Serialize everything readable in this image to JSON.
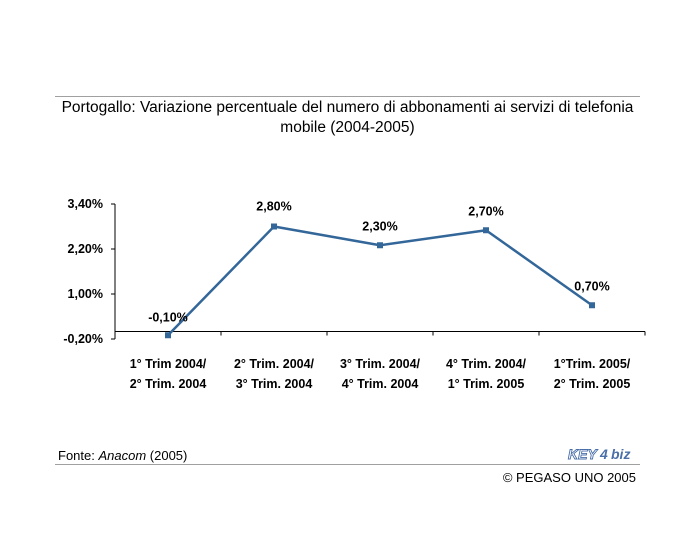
{
  "title": "Portogallo: Variazione percentuale del numero di abbonamenti ai servizi di telefonia mobile (2004-2005)",
  "source": {
    "prefix": "Fonte: ",
    "name": "Anacom",
    "suffix": " (2005)"
  },
  "copyright": "© PEGASO UNO 2005",
  "logo": {
    "text_left": "KEY",
    "text_num": "4",
    "text_right": "biz",
    "color": "#4a6fa8"
  },
  "chart_data": {
    "type": "line",
    "title": "Portogallo: Variazione percentuale del numero di abbonamenti ai servizi di telefonia mobile (2004-2005)",
    "categories": [
      [
        "1° Trim 2004/",
        "2° Trim. 2004"
      ],
      [
        "2° Trim. 2004/",
        "3° Trim. 2004"
      ],
      [
        "3° Trim. 2004/",
        "4° Trim. 2004"
      ],
      [
        "4° Trim. 2004/",
        "1° Trim. 2005"
      ],
      [
        "1°Trim. 2005/",
        "2° Trim. 2005"
      ]
    ],
    "series": [
      {
        "values": [
          -0.1,
          2.8,
          2.3,
          2.7,
          0.7
        ],
        "color": "#336699"
      }
    ],
    "data_labels": [
      "-0,10%",
      "2,80%",
      "2,30%",
      "2,70%",
      "0,70%"
    ],
    "yticks": [
      -0.2,
      1.0,
      2.2,
      3.4
    ],
    "ytick_labels": [
      "-0,20%",
      "1,00%",
      "2,20%",
      "3,40%"
    ],
    "ylim": [
      -0.2,
      3.4
    ],
    "xlabel": "",
    "ylabel": "",
    "grid": false,
    "legend": "none"
  }
}
